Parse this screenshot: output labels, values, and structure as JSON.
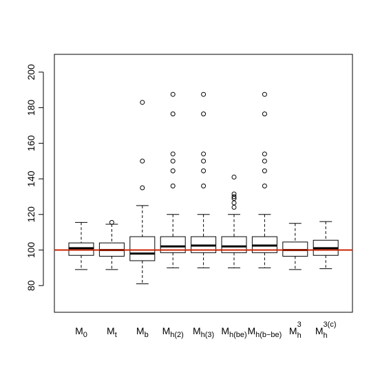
{
  "chart_data": {
    "type": "boxplot",
    "title": "",
    "xlabel": "",
    "ylabel": "",
    "ylim": [
      65,
      210
    ],
    "yticks": [
      80,
      100,
      120,
      140,
      160,
      180,
      200
    ],
    "ytick_labels": [
      "80",
      "100",
      "120",
      "140",
      "160",
      "180",
      "200"
    ],
    "grid": false,
    "reference_line": {
      "y": 100,
      "color": "#cc2200"
    },
    "categories": [
      {
        "base": "M",
        "sub": "0",
        "sup": ""
      },
      {
        "base": "M",
        "sub": "t",
        "sup": ""
      },
      {
        "base": "M",
        "sub": "b",
        "sup": ""
      },
      {
        "base": "M",
        "sub": "h(2)",
        "sup": ""
      },
      {
        "base": "M",
        "sub": "h(3)",
        "sup": ""
      },
      {
        "base": "M",
        "sub": "h(be)",
        "sup": ""
      },
      {
        "base": "M",
        "sub": "h(b−be)",
        "sup": ""
      },
      {
        "base": "M",
        "sub": "h",
        "sup": "3"
      },
      {
        "base": "M",
        "sub": "h",
        "sup": "3(c)"
      }
    ],
    "boxes": [
      {
        "whisker_low": 89,
        "q1": 97,
        "median": 101,
        "q3": 104,
        "whisker_high": 115.5,
        "outliers": []
      },
      {
        "whisker_low": 89,
        "q1": 96.5,
        "median": 100,
        "q3": 104,
        "whisker_high": 114.5,
        "outliers": [
          115.5
        ]
      },
      {
        "whisker_low": 81,
        "q1": 94,
        "median": 98,
        "q3": 107.5,
        "whisker_high": 125,
        "outliers": [
          135,
          150,
          183
        ]
      },
      {
        "whisker_low": 90,
        "q1": 98.5,
        "median": 102,
        "q3": 107.5,
        "whisker_high": 120,
        "outliers": [
          136,
          144.5,
          150,
          154,
          176.5,
          187.5
        ]
      },
      {
        "whisker_low": 90,
        "q1": 98.5,
        "median": 102.5,
        "q3": 107.5,
        "whisker_high": 120,
        "outliers": [
          136,
          144.5,
          150,
          154,
          176.5,
          187.5
        ]
      },
      {
        "whisker_low": 90,
        "q1": 98.5,
        "median": 102,
        "q3": 107.5,
        "whisker_high": 120,
        "outliers": [
          124,
          126.5,
          129,
          130,
          131.5,
          141
        ]
      },
      {
        "whisker_low": 90,
        "q1": 98.5,
        "median": 102.5,
        "q3": 107.5,
        "whisker_high": 120,
        "outliers": [
          136,
          144.5,
          150,
          154,
          176.5,
          187.5
        ]
      },
      {
        "whisker_low": 89,
        "q1": 96.5,
        "median": 100,
        "q3": 104.5,
        "whisker_high": 115,
        "outliers": []
      },
      {
        "whisker_low": 89.5,
        "q1": 97,
        "median": 101,
        "q3": 105.5,
        "whisker_high": 116,
        "outliers": []
      }
    ]
  }
}
